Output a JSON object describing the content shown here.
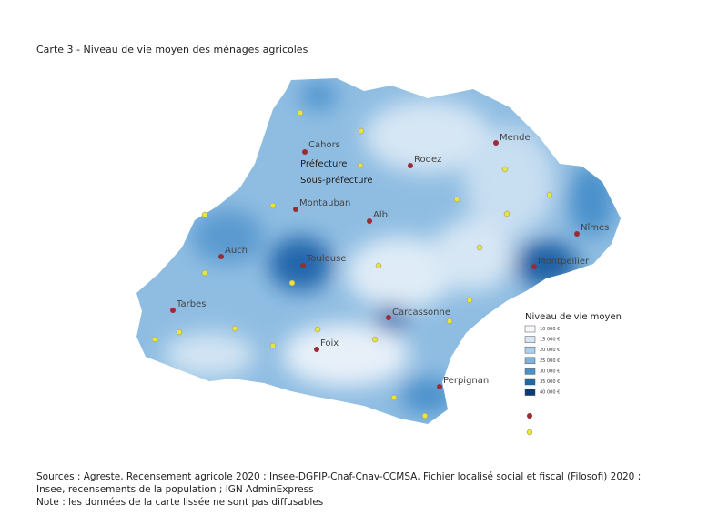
{
  "title": "Carte 3 - Niveau de vie moyen des ménages agricoles",
  "map": {
    "prefectures": [
      "Cahors",
      "Rodez",
      "Mende",
      "Montauban",
      "Albi",
      "Nîmes",
      "Auch",
      "Toulouse",
      "Montpellier",
      "Tarbes",
      "Carcassonne",
      "Foix",
      "Perpignan"
    ],
    "symbol_labels": [
      "Préfecture",
      "Sous-préfecture"
    ]
  },
  "legend": {
    "title": "Niveau de vie moyen",
    "items": [
      {
        "label": "10 000 €",
        "color": "#f4f8fc"
      },
      {
        "label": "15 000 €",
        "color": "#d6e6f4"
      },
      {
        "label": "20 000 €",
        "color": "#aecfe8"
      },
      {
        "label": "25 000 €",
        "color": "#7fb3dc"
      },
      {
        "label": "30 000 €",
        "color": "#4a90cb"
      },
      {
        "label": "35 000 €",
        "color": "#2166ac"
      },
      {
        "label": "40 000 €",
        "color": "#0b3a78"
      }
    ],
    "prefecture_color": "#9b2b35",
    "subprefecture_color": "#e8e53a"
  },
  "footer": [
    "Sources : Agreste, Recensement agricole 2020 ; Insee-DGFIP-Cnaf-Cnav-CCMSA, Fichier localisé social et fiscal (Filosofi) 2020 ;",
    "Insee, recensements de la population ; IGN AdminExpress",
    "Note : les données de la carte lissée ne sont pas diffusables"
  ]
}
